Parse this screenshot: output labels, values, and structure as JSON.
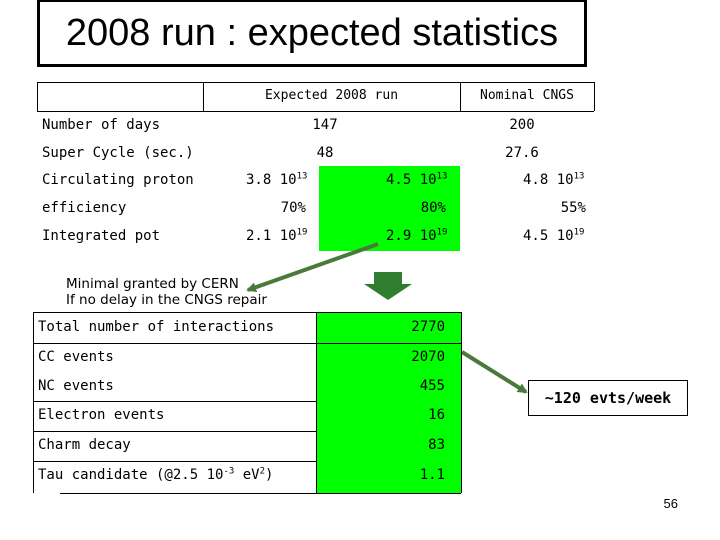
{
  "title": "2008 run : expected statistics",
  "top_table": {
    "col_headers": [
      "Expected 2008 run",
      "Nominal CNGS"
    ],
    "rows": {
      "days": {
        "label": "Number of days",
        "expected": "147",
        "nominal": "200"
      },
      "super_cycle": {
        "label": "Super Cycle (sec.)",
        "expected": "48",
        "nominal": "27.6"
      },
      "circulating": {
        "label": "Circulating proton",
        "a": "3.8 10",
        "a_exp": "13",
        "b": "4.5 10",
        "b_exp": "13",
        "c": "4.8 10",
        "c_exp": "13"
      },
      "efficiency": {
        "label": "efficiency",
        "a": "70%",
        "b": "80%",
        "c": "55%"
      },
      "pot": {
        "label": "Integrated pot",
        "a": "2.1 10",
        "a_exp": "19",
        "b": "2.9 10",
        "b_exp": "19",
        "c": "4.5 10",
        "c_exp": "19"
      }
    }
  },
  "annotation": {
    "line1": "Minimal granted by CERN",
    "line2": "If no delay in the CNGS repair"
  },
  "bottom_table": {
    "rows": [
      {
        "label": "Total number of interactions",
        "value": "2770"
      },
      {
        "label": "CC events",
        "value": "2070"
      },
      {
        "label": "NC events",
        "value": "455"
      },
      {
        "label": "Electron events",
        "value": "16"
      },
      {
        "label": "Charm decay",
        "value": "83"
      },
      {
        "label_pre": "Tau candidate (@2.5 10",
        "label_exp1": "-3",
        "label_mid": " eV",
        "label_exp2": "2",
        "label_post": ")",
        "value": "1.1"
      }
    ]
  },
  "rate_box": "~120 evts/week",
  "page_number": "56",
  "colors": {
    "highlight": "#00ff00",
    "arrow": "#4a7a3a"
  }
}
